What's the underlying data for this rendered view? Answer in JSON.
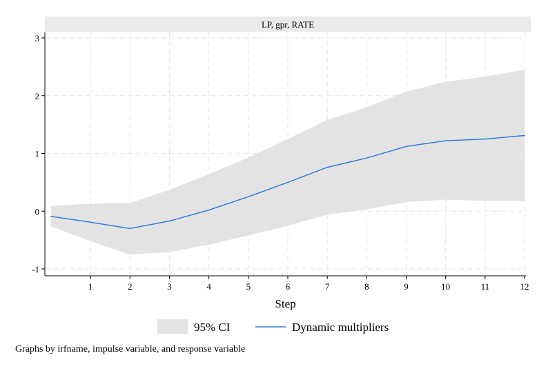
{
  "panel_title": "LP, gpr, RATE",
  "footnote": "Graphs by irfname, impulse variable, and response variable",
  "colors": {
    "ci_band": "#e3e3e3",
    "line": "#2a7fde",
    "grid": "#e6e6e6",
    "strip": "#eaeaea",
    "axis": "#000000"
  },
  "chart_data": {
    "type": "area",
    "title": "LP, gpr, RATE",
    "xlabel": "Step",
    "ylabel": "",
    "xlim": [
      0,
      12
    ],
    "ylim": [
      -1,
      3
    ],
    "x_ticks": [
      1,
      2,
      3,
      4,
      5,
      6,
      7,
      8,
      9,
      10,
      11,
      12
    ],
    "y_ticks": [
      -1,
      0,
      1,
      2,
      3
    ],
    "grid": true,
    "legend_position": "bottom",
    "x": [
      0,
      1,
      2,
      3,
      4,
      5,
      6,
      7,
      8,
      9,
      10,
      11,
      12
    ],
    "series": [
      {
        "name": "95% CI",
        "kind": "band",
        "lower": [
          -0.26,
          -0.52,
          -0.75,
          -0.71,
          -0.58,
          -0.42,
          -0.25,
          -0.06,
          0.03,
          0.16,
          0.2,
          0.18,
          0.18
        ],
        "upper": [
          0.09,
          0.13,
          0.14,
          0.37,
          0.64,
          0.93,
          1.25,
          1.58,
          1.8,
          2.07,
          2.24,
          2.33,
          2.45
        ]
      },
      {
        "name": "Dynamic multipliers",
        "kind": "line",
        "values": [
          -0.09,
          -0.19,
          -0.3,
          -0.17,
          0.02,
          0.25,
          0.5,
          0.76,
          0.92,
          1.12,
          1.22,
          1.25,
          1.31
        ]
      }
    ]
  }
}
